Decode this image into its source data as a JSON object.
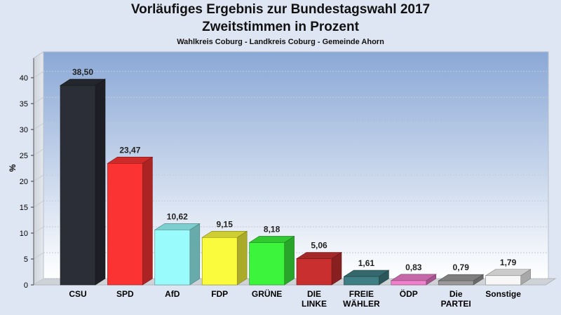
{
  "header": {
    "title": "Vorläufiges Ergebnis zur Bundestagswahl 2017",
    "subtitle": "Zweitstimmen in Prozent",
    "region": "Wahlkreis Coburg - Landkreis Coburg - Gemeinde Ahorn"
  },
  "chart_data": {
    "type": "bar",
    "title": "Vorläufiges Ergebnis zur Bundestagswahl 2017",
    "subtitle": "Zweitstimmen in Prozent",
    "xlabel": "",
    "ylabel": "%",
    "ylim": [
      0,
      40
    ],
    "yticks": [
      0,
      5,
      10,
      15,
      20,
      25,
      30,
      35,
      40
    ],
    "grid": true,
    "categories": [
      "CSU",
      "SPD",
      "AfD",
      "FDP",
      "GRÜNE",
      "DIE LINKE",
      "FREIE WÄHLER",
      "ÖDP",
      "Die PARTEI",
      "Sonstige"
    ],
    "category_lines": [
      [
        "CSU"
      ],
      [
        "SPD"
      ],
      [
        "AfD"
      ],
      [
        "FDP"
      ],
      [
        "GRÜNE"
      ],
      [
        "DIE",
        "LINKE"
      ],
      [
        "FREIE",
        "WÄHLER"
      ],
      [
        "ÖDP"
      ],
      [
        "Die",
        "PARTEI"
      ],
      [
        "Sonstige"
      ]
    ],
    "values": [
      38.5,
      23.47,
      10.62,
      9.15,
      8.18,
      5.06,
      1.61,
      0.83,
      0.79,
      1.79
    ],
    "value_labels": [
      "38,50",
      "23,47",
      "10,62",
      "9,15",
      "8,18",
      "5,06",
      "1,61",
      "0,83",
      "0,79",
      "1,79"
    ],
    "colors": [
      "#2b2e36",
      "#fb3333",
      "#99fbfb",
      "#fbfb3d",
      "#3cf43c",
      "#c92f2f",
      "#3f7f84",
      "#f07fcc",
      "#9a9a9a",
      "#f7f7f7"
    ]
  }
}
